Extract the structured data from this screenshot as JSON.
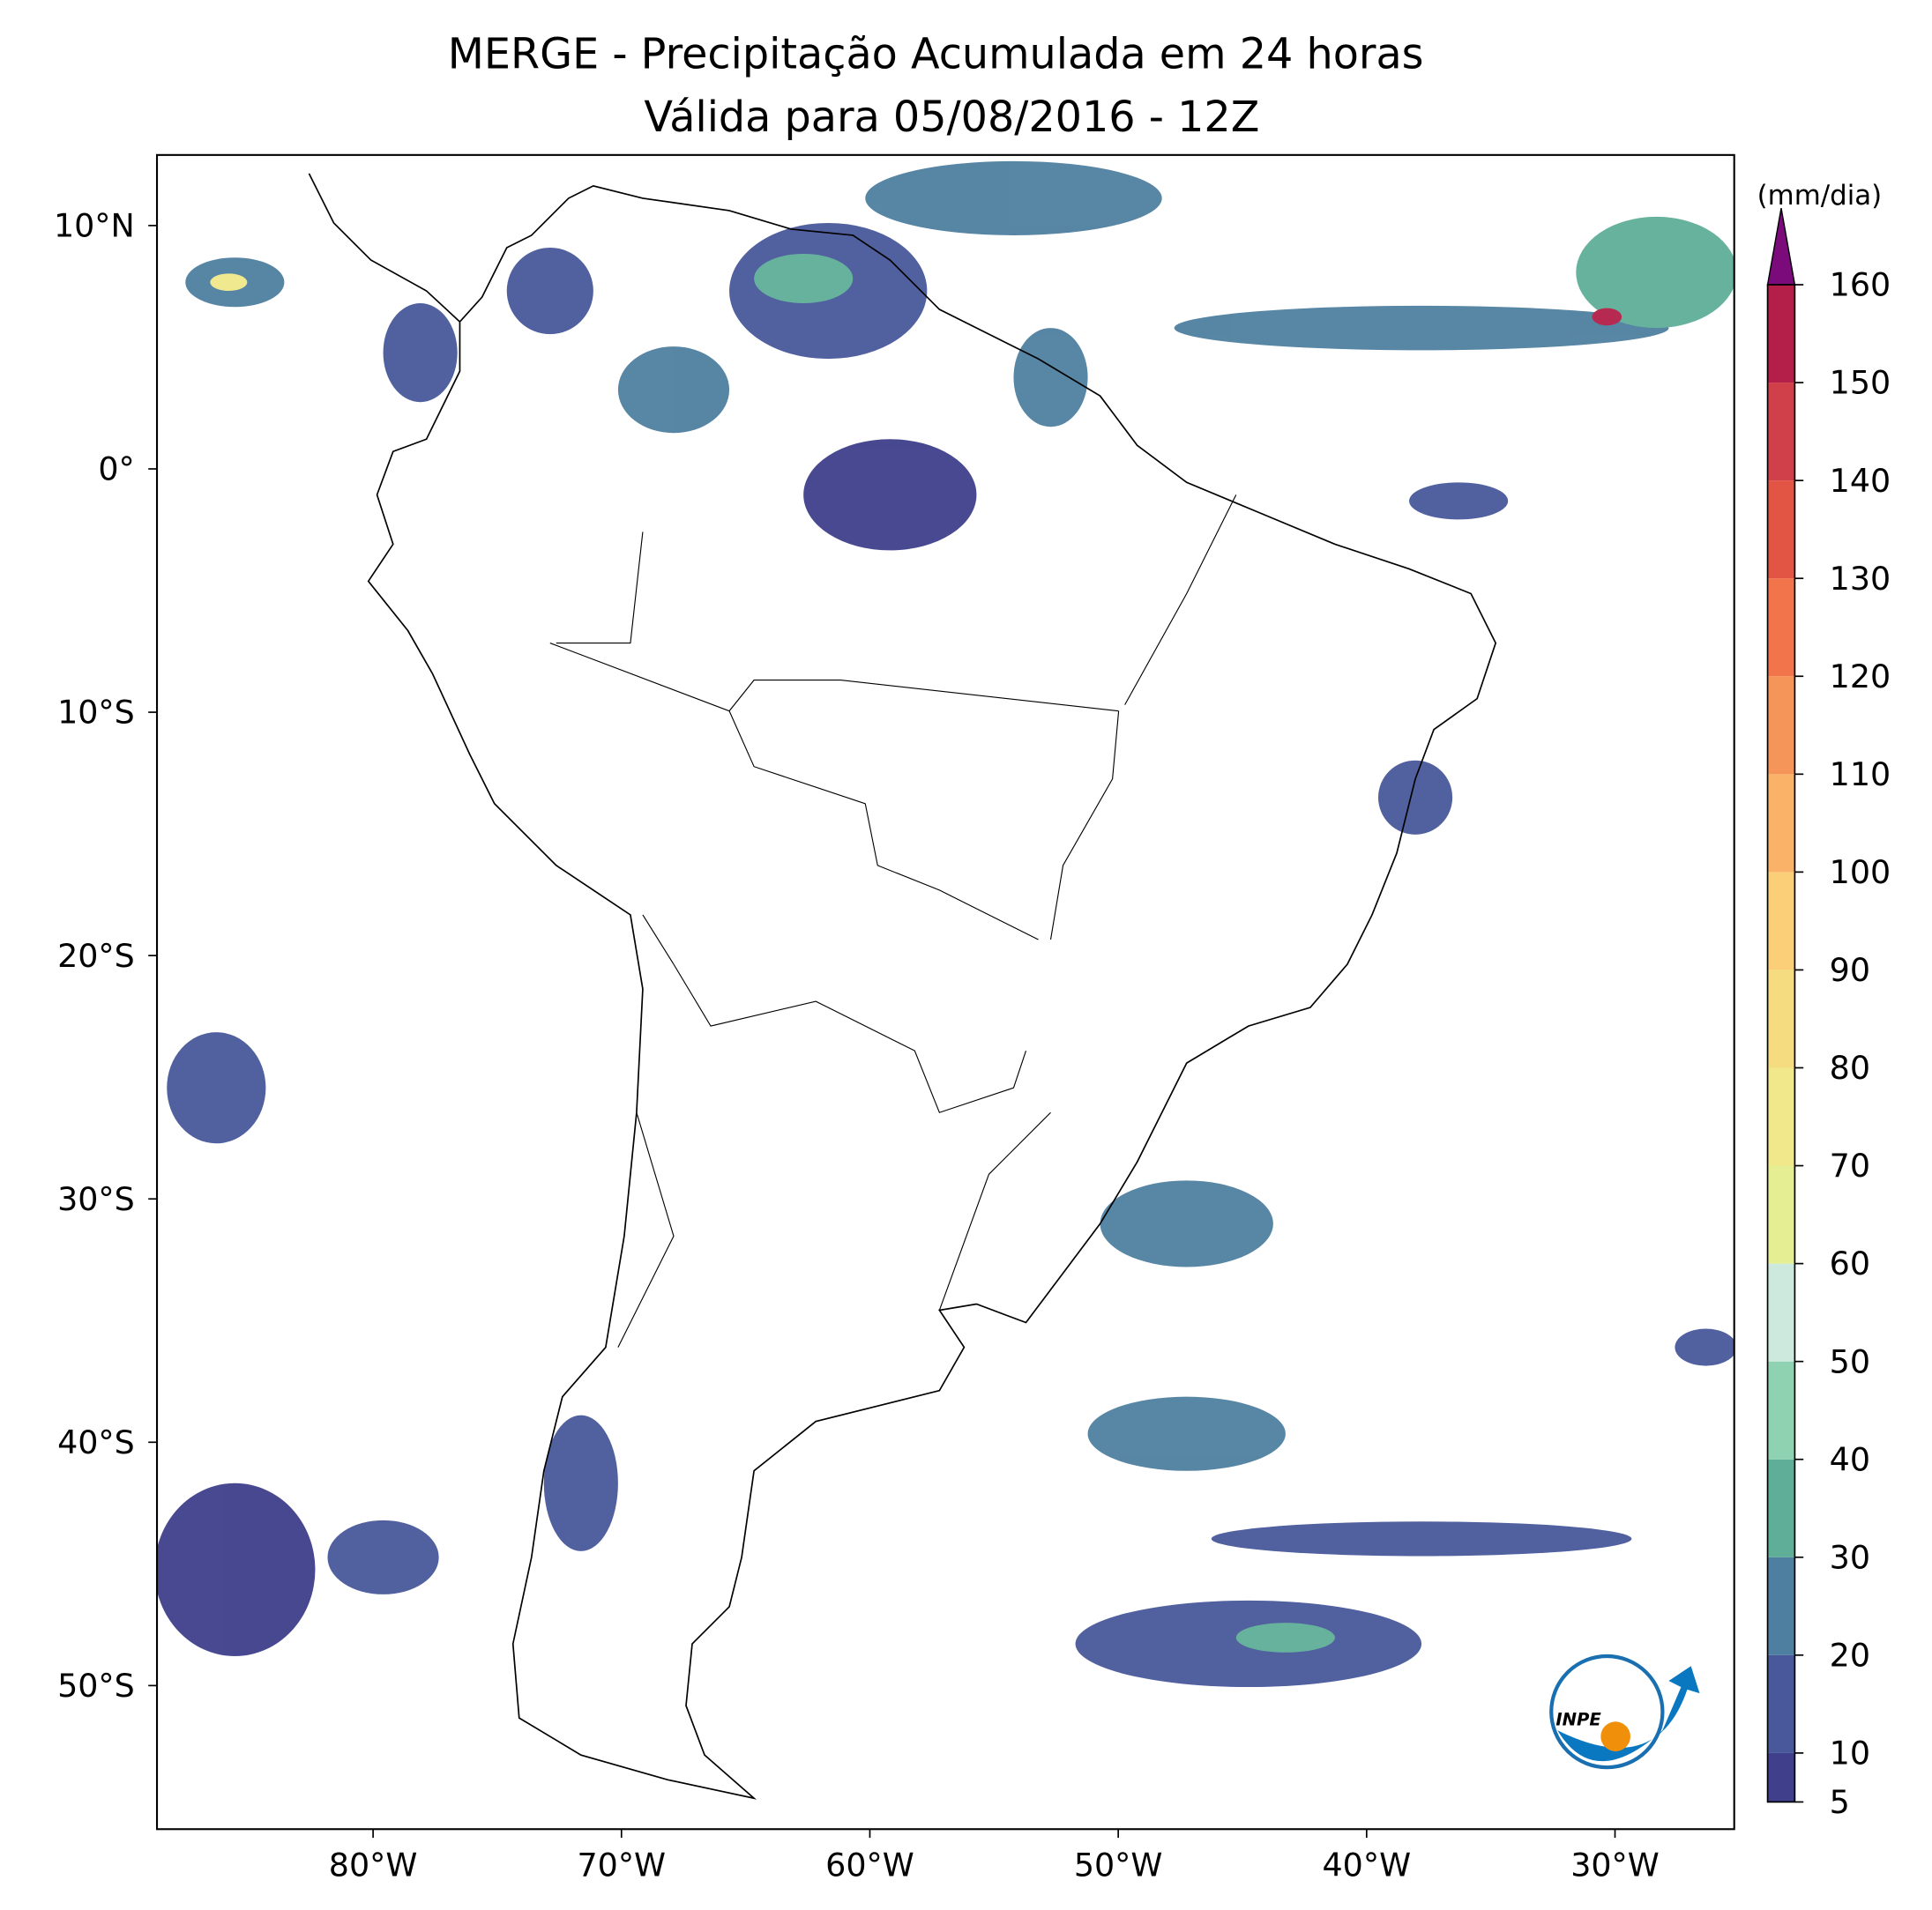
{
  "chart_data": {
    "type": "map",
    "title": "MERGE - Precipitação Acumulada em 24 horas",
    "subtitle": "Válida para 05/08/2016 - 12Z",
    "xlim": [
      -88.7,
      -25.2
    ],
    "ylim": [
      -55.9,
      12.9
    ],
    "xticks": [
      {
        "value": -80,
        "label": "80°W"
      },
      {
        "value": -70,
        "label": "70°W"
      },
      {
        "value": -60,
        "label": "60°W"
      },
      {
        "value": -50,
        "label": "50°W"
      },
      {
        "value": -40,
        "label": "40°W"
      },
      {
        "value": -30,
        "label": "30°W"
      }
    ],
    "yticks": [
      {
        "value": 10,
        "label": "10°N"
      },
      {
        "value": 0,
        "label": "0°"
      },
      {
        "value": -10,
        "label": "10°S"
      },
      {
        "value": -20,
        "label": "20°S"
      },
      {
        "value": -30,
        "label": "30°S"
      },
      {
        "value": -40,
        "label": "40°S"
      },
      {
        "value": -50,
        "label": "50°S"
      }
    ],
    "colorbar": {
      "label": "(mm/dia)",
      "lim": [
        5,
        160
      ],
      "ticks": [
        5,
        10,
        20,
        30,
        40,
        50,
        60,
        70,
        80,
        90,
        100,
        110,
        120,
        130,
        140,
        150,
        160
      ],
      "colors": [
        "#3f3f8c",
        "#48589a",
        "#4f7fa0",
        "#5fae98",
        "#8fd2b2",
        "#cde9dd",
        "#e6ee94",
        "#f0e88a",
        "#f6dc80",
        "#fbcf78",
        "#f9b268",
        "#f6955a",
        "#f1744a",
        "#e25545",
        "#d0404a",
        "#b31f48"
      ],
      "extend_color": "#7b0a7a"
    },
    "logo_text": "INPE"
  }
}
